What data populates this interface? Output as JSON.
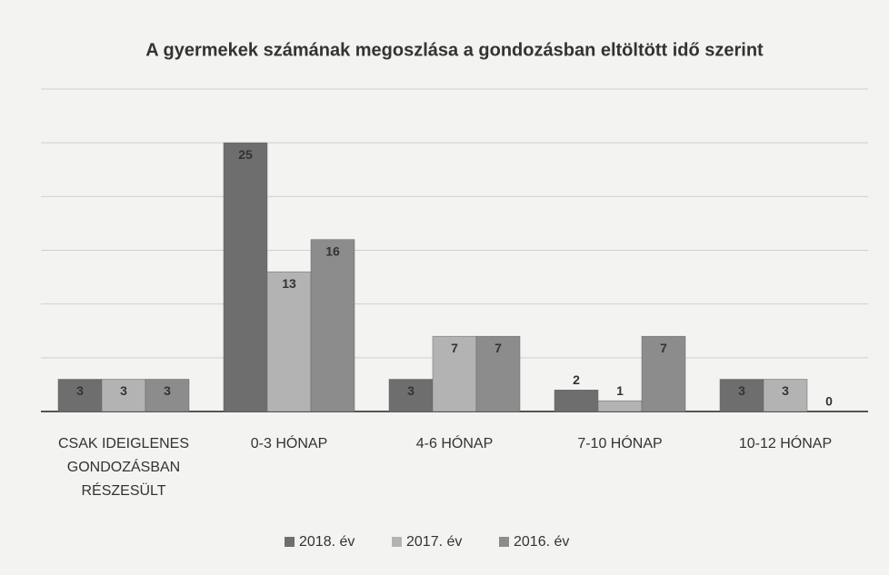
{
  "chart_data": {
    "type": "bar",
    "title": "A gyermekek számának megoszlása a gondozásban eltöltött idő szerint",
    "categories": [
      "CSAK IDEIGLENES\nGONDOZÁSBAN\nRÉSZESÜLT",
      "0-3 HÓNAP",
      "4-6 HÓNAP",
      "7-10 HÓNAP",
      "10-12 HÓNAP"
    ],
    "series": [
      {
        "name": "2018. év",
        "color": "#6e6e6e",
        "values": [
          3,
          25,
          3,
          2,
          3
        ]
      },
      {
        "name": "2017. év",
        "color": "#b3b3b3",
        "values": [
          3,
          13,
          7,
          1,
          3
        ]
      },
      {
        "name": "2016. év",
        "color": "#8c8c8c",
        "values": [
          3,
          16,
          7,
          7,
          0
        ]
      }
    ],
    "ylim": [
      0,
      30
    ],
    "yticks": [
      0,
      5,
      10,
      15,
      20,
      25,
      30
    ],
    "grid": true,
    "legend": "bottom"
  }
}
